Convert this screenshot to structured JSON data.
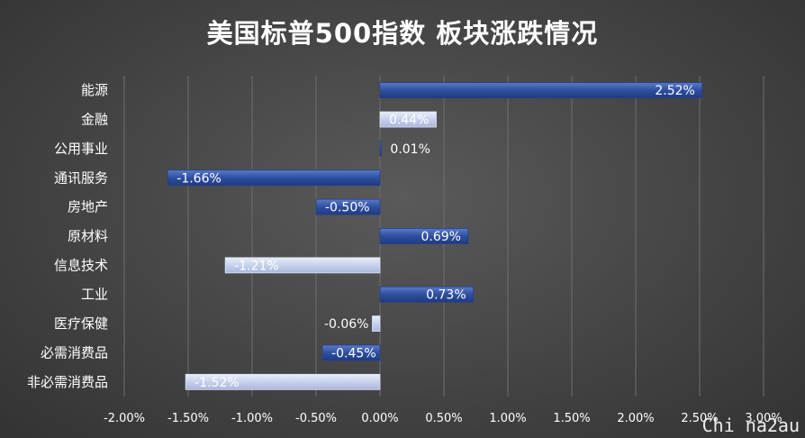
{
  "chart_data": {
    "type": "bar",
    "orientation": "horizontal",
    "title": "美国标普500指数 板块涨跌情况",
    "categories": [
      "能源",
      "金融",
      "公用事业",
      "通讯服务",
      "房地产",
      "原材料",
      "信息技术",
      "工业",
      "医疗保健",
      "必需消费品",
      "非必需消费品"
    ],
    "values": [
      2.52,
      0.44,
      0.01,
      -1.66,
      -0.5,
      0.69,
      -1.21,
      0.73,
      -0.06,
      -0.45,
      -1.52
    ],
    "value_labels": [
      "2.52%",
      "0.44%",
      "0.01%",
      "-1.66%",
      "-0.50%",
      "0.69%",
      "-1.21%",
      "0.73%",
      "-0.06%",
      "-0.45%",
      "-1.52%"
    ],
    "xlim": [
      -2.0,
      3.0
    ],
    "x_ticks": [
      "-2.00%",
      "-1.50%",
      "-1.00%",
      "-0.50%",
      "0.00%",
      "0.50%",
      "1.00%",
      "1.50%",
      "2.00%",
      "2.50%",
      "3.00%"
    ],
    "tick_values": [
      -2.0,
      -1.5,
      -1.0,
      -0.5,
      0.0,
      0.5,
      1.0,
      1.5,
      2.0,
      2.5,
      3.0
    ],
    "grid": true,
    "colors": {
      "dark_bar": "#2f4f9f",
      "dark_bar_light": "#5a7bcb",
      "light_bar": "#c7d1ec",
      "light_bar_edge": "#e8edf9",
      "grid": "#6e6e6e",
      "text": "#ffffff"
    },
    "bar_style": [
      "dark",
      "light",
      "dark",
      "dark",
      "dark",
      "dark",
      "light",
      "dark",
      "light",
      "dark",
      "light"
    ]
  },
  "watermark": "Chi na2au"
}
